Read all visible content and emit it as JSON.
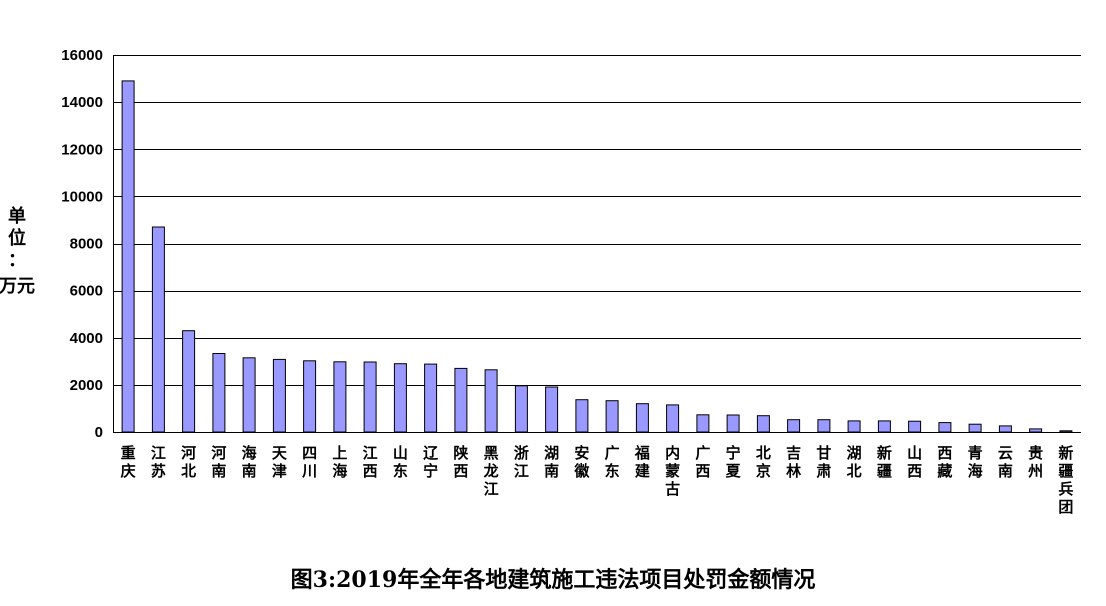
{
  "chart_data": {
    "type": "bar",
    "title": "图3:2019年全年各地建筑施工违法项目处罚金额情况",
    "ylabel": "单位：万元",
    "xlabel": "",
    "ylim": [
      0,
      16000
    ],
    "yticks": [
      0,
      2000,
      4000,
      6000,
      8000,
      10000,
      12000,
      14000,
      16000
    ],
    "grid": true,
    "legend": "none",
    "bar_color": "#9999ff",
    "categories": [
      "重庆",
      "江苏",
      "河北",
      "河南",
      "海南",
      "天津",
      "四川",
      "上海",
      "江西",
      "山东",
      "辽宁",
      "陕西",
      "黑龙江",
      "浙江",
      "湖南",
      "安徽",
      "广东",
      "福建",
      "内蒙古",
      "广西",
      "宁夏",
      "北京",
      "吉林",
      "甘肃",
      "湖北",
      "新疆",
      "山西",
      "西藏",
      "青海",
      "云南",
      "贵州",
      "新疆兵团"
    ],
    "values": [
      14900,
      8700,
      4300,
      3330,
      3150,
      3080,
      3020,
      2980,
      2970,
      2900,
      2880,
      2700,
      2640,
      1960,
      1910,
      1370,
      1330,
      1200,
      1150,
      730,
      720,
      690,
      520,
      520,
      470,
      470,
      460,
      400,
      330,
      260,
      130,
      50
    ]
  }
}
